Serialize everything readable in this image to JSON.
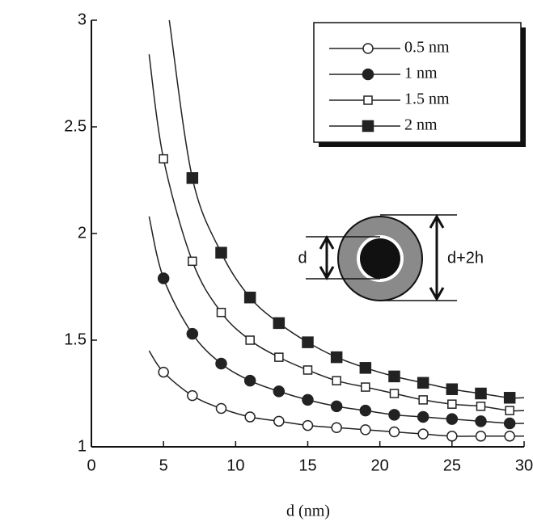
{
  "chart_data": {
    "type": "line",
    "xlabel": "d (nm)",
    "xlim": [
      0,
      30
    ],
    "xticks": [
      0,
      5,
      10,
      15,
      20,
      25,
      30
    ],
    "ylim": [
      1,
      3
    ],
    "yticks": [
      1,
      1.5,
      2,
      2.5,
      3
    ],
    "legend_position": "upper right",
    "series": [
      {
        "name": "0.5 nm",
        "marker": "open-circle",
        "color": "#222",
        "x": [
          5,
          7,
          9,
          11,
          13,
          15,
          17,
          19,
          21,
          23,
          25,
          27,
          29
        ],
        "values": [
          1.35,
          1.24,
          1.18,
          1.14,
          1.12,
          1.1,
          1.09,
          1.08,
          1.07,
          1.06,
          1.05,
          1.05,
          1.05
        ],
        "line": {
          "x": [
            4,
            5,
            7,
            9,
            11,
            13,
            15,
            17,
            19,
            21,
            23,
            25,
            27,
            29,
            30
          ],
          "values": [
            1.45,
            1.35,
            1.24,
            1.18,
            1.14,
            1.12,
            1.1,
            1.09,
            1.08,
            1.07,
            1.06,
            1.05,
            1.05,
            1.05,
            1.05
          ]
        }
      },
      {
        "name": "1 nm",
        "marker": "filled-circle",
        "color": "#222",
        "x": [
          5,
          7,
          9,
          11,
          13,
          15,
          17,
          19,
          21,
          23,
          25,
          27,
          29
        ],
        "values": [
          1.79,
          1.53,
          1.39,
          1.31,
          1.26,
          1.22,
          1.19,
          1.17,
          1.15,
          1.14,
          1.13,
          1.12,
          1.11
        ],
        "line": {
          "x": [
            4,
            5,
            7,
            9,
            11,
            13,
            15,
            17,
            19,
            21,
            23,
            25,
            27,
            29,
            30
          ],
          "values": [
            2.08,
            1.79,
            1.53,
            1.39,
            1.31,
            1.26,
            1.22,
            1.19,
            1.17,
            1.15,
            1.14,
            1.13,
            1.12,
            1.11,
            1.11
          ]
        }
      },
      {
        "name": "1.5 nm",
        "marker": "open-square",
        "color": "#222",
        "x": [
          5,
          7,
          9,
          11,
          13,
          15,
          17,
          19,
          21,
          23,
          25,
          27,
          29
        ],
        "values": [
          2.35,
          1.87,
          1.63,
          1.5,
          1.42,
          1.36,
          1.31,
          1.28,
          1.25,
          1.22,
          1.2,
          1.19,
          1.17
        ],
        "line": {
          "x": [
            4,
            5,
            7,
            9,
            11,
            13,
            15,
            17,
            19,
            21,
            23,
            25,
            27,
            29,
            30
          ],
          "values": [
            2.84,
            2.35,
            1.87,
            1.63,
            1.5,
            1.42,
            1.36,
            1.31,
            1.28,
            1.25,
            1.22,
            1.2,
            1.19,
            1.17,
            1.17
          ]
        }
      },
      {
        "name": "2 nm",
        "marker": "filled-square",
        "color": "#222",
        "x": [
          7,
          9,
          11,
          13,
          15,
          17,
          19,
          21,
          23,
          25,
          27,
          29
        ],
        "values": [
          2.26,
          1.91,
          1.7,
          1.58,
          1.49,
          1.42,
          1.37,
          1.33,
          1.3,
          1.27,
          1.25,
          1.23
        ],
        "line": {
          "x": [
            5.4,
            7,
            9,
            11,
            13,
            15,
            17,
            19,
            21,
            23,
            25,
            27,
            29,
            30
          ],
          "values": [
            3,
            2.26,
            1.91,
            1.7,
            1.58,
            1.49,
            1.42,
            1.37,
            1.33,
            1.3,
            1.27,
            1.25,
            1.23,
            1.23
          ]
        }
      }
    ],
    "inset": {
      "inner_label": "d",
      "outer_label": "d+2h"
    }
  }
}
